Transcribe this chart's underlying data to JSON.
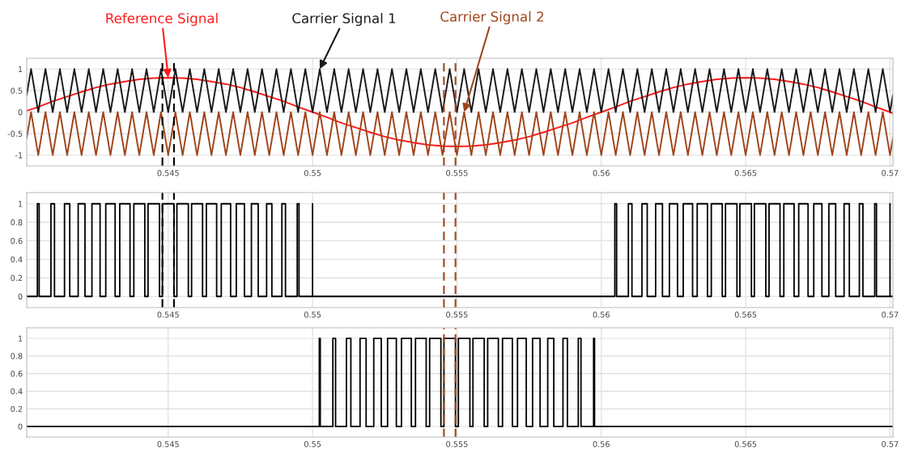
{
  "chart_data": [
    {
      "type": "line",
      "xlim": [
        0.5401,
        0.5701
      ],
      "ylim": [
        -1.25,
        1.25
      ],
      "xticks": [
        0.545,
        0.55,
        0.555,
        0.56,
        0.565,
        0.57
      ],
      "yticks": [
        -1,
        -0.5,
        0,
        0.5,
        1
      ],
      "grid": true,
      "annotations": [
        {
          "text": "Reference Signal",
          "x": 0.545,
          "y": 0.8
        },
        {
          "text": "Carrier Signal 1",
          "x": 0.55025,
          "y": 1
        },
        {
          "text": "Carrier Signal 2",
          "x": 0.55525,
          "y": 0
        }
      ],
      "ref_lines": [
        {
          "axis": "x",
          "value": 0.5448,
          "color": "#000000",
          "line_style": "dashed"
        },
        {
          "axis": "x",
          "value": 0.5452,
          "color": "#000000",
          "line_style": "dashed"
        },
        {
          "axis": "x",
          "value": 0.55455,
          "color": "#a0441a",
          "line_style": "dashed"
        },
        {
          "axis": "x",
          "value": 0.55495,
          "color": "#a0441a",
          "line_style": "dashed"
        }
      ],
      "series": [
        {
          "color": "#ff1a1a",
          "x": [
            0.5401,
            0.5405,
            0.541,
            0.5415,
            0.542,
            0.5425,
            0.543,
            0.5435,
            0.544,
            0.5445,
            0.545,
            0.5455,
            0.546,
            0.5465,
            0.547,
            0.5475,
            0.548,
            0.5485,
            0.549,
            0.5495,
            0.55,
            0.5505,
            0.551,
            0.5515,
            0.552,
            0.5525,
            0.553,
            0.5535,
            0.554,
            0.5545,
            0.555,
            0.5555,
            0.556,
            0.5565,
            0.557,
            0.5575,
            0.558,
            0.5585,
            0.559,
            0.5595,
            0.56,
            0.5605,
            0.561,
            0.5615,
            0.562,
            0.5625,
            0.563,
            0.5635,
            0.564,
            0.5645,
            0.565,
            0.5655,
            0.566,
            0.5665,
            0.567,
            0.5675,
            0.568,
            0.5685,
            0.569,
            0.5695,
            0.57,
            0.5701
          ],
          "values": [
            0.03,
            0.12,
            0.25,
            0.36,
            0.47,
            0.57,
            0.65,
            0.71,
            0.76,
            0.79,
            0.8,
            0.79,
            0.76,
            0.71,
            0.65,
            0.57,
            0.47,
            0.36,
            0.25,
            0.12,
            0,
            -0.12,
            -0.25,
            -0.36,
            -0.47,
            -0.57,
            -0.65,
            -0.71,
            -0.76,
            -0.79,
            -0.8,
            -0.79,
            -0.76,
            -0.71,
            -0.65,
            -0.57,
            -0.47,
            -0.36,
            -0.25,
            -0.12,
            0,
            0.12,
            0.25,
            0.36,
            0.47,
            0.57,
            0.65,
            0.71,
            0.76,
            0.79,
            0.8,
            0.79,
            0.76,
            0.71,
            0.65,
            0.57,
            0.47,
            0.36,
            0.25,
            0.12,
            0,
            -0.03
          ]
        },
        {
          "color": "#1a1a1a",
          "x": [
            0.5401,
            0.54025,
            0.5405,
            0.54075,
            0.541,
            0.54125,
            0.5415,
            0.54175,
            0.542,
            0.54225,
            0.5425,
            0.54275,
            0.543,
            0.54325,
            0.5435,
            0.54375,
            0.544,
            0.54425,
            0.5445,
            0.54475,
            0.545,
            0.54525,
            0.5455,
            0.54575,
            0.546,
            0.54625,
            0.5465,
            0.54675,
            0.547,
            0.54725,
            0.5475,
            0.54775,
            0.548,
            0.54825,
            0.5485,
            0.54875,
            0.549,
            0.54925,
            0.5495,
            0.54975,
            0.55,
            0.55025,
            0.5505,
            0.55075,
            0.551,
            0.55125,
            0.5515,
            0.55175,
            0.552,
            0.55225,
            0.5525,
            0.55275,
            0.553,
            0.55325,
            0.5535,
            0.55375,
            0.554,
            0.55425,
            0.5545,
            0.55475,
            0.555,
            0.55525,
            0.5555,
            0.55575,
            0.556,
            0.55625,
            0.5565,
            0.55675,
            0.557,
            0.55725,
            0.5575,
            0.55775,
            0.558,
            0.55825,
            0.5585,
            0.55875,
            0.559,
            0.55925,
            0.5595,
            0.55975,
            0.56,
            0.56025,
            0.5605,
            0.56075,
            0.561,
            0.56125,
            0.5615,
            0.56175,
            0.562,
            0.56225,
            0.5625,
            0.56275,
            0.563,
            0.56325,
            0.5635,
            0.56375,
            0.564,
            0.56425,
            0.5645,
            0.56475,
            0.565,
            0.56525,
            0.5655,
            0.56575,
            0.566,
            0.56625,
            0.5665,
            0.56675,
            0.567,
            0.56725,
            0.5675,
            0.56775,
            0.568,
            0.56825,
            0.5685,
            0.56875,
            0.569,
            0.56925,
            0.5695,
            0.56975,
            0.57,
            0.5701
          ],
          "values": [
            0.4,
            1,
            0,
            1,
            0,
            1,
            0,
            1,
            0,
            1,
            0,
            1,
            0,
            1,
            0,
            1,
            0,
            1,
            0,
            1,
            0,
            1,
            0,
            1,
            0,
            1,
            0,
            1,
            0,
            1,
            0,
            1,
            0,
            1,
            0,
            1,
            0,
            1,
            0,
            1,
            0,
            1,
            0,
            1,
            0,
            1,
            0,
            1,
            0,
            1,
            0,
            1,
            0,
            1,
            0,
            1,
            0,
            1,
            0,
            1,
            0,
            1,
            0,
            1,
            0,
            1,
            0,
            1,
            0,
            1,
            0,
            1,
            0,
            1,
            0,
            1,
            0,
            1,
            0,
            1,
            0,
            1,
            0,
            1,
            0,
            1,
            0,
            1,
            0,
            1,
            0,
            1,
            0,
            1,
            0,
            1,
            0,
            1,
            0,
            1,
            0,
            1,
            0,
            1,
            0,
            1,
            0,
            1,
            0,
            1,
            0,
            1,
            0,
            1,
            0,
            1,
            0,
            1,
            0,
            1,
            0,
            0.4
          ]
        },
        {
          "color": "#a0441a",
          "x": [
            0.5401,
            0.54025,
            0.5405,
            0.54075,
            0.541,
            0.54125,
            0.5415,
            0.54175,
            0.542,
            0.54225,
            0.5425,
            0.54275,
            0.543,
            0.54325,
            0.5435,
            0.54375,
            0.544,
            0.54425,
            0.5445,
            0.54475,
            0.545,
            0.54525,
            0.5455,
            0.54575,
            0.546,
            0.54625,
            0.5465,
            0.54675,
            0.547,
            0.54725,
            0.5475,
            0.54775,
            0.548,
            0.54825,
            0.5485,
            0.54875,
            0.549,
            0.54925,
            0.5495,
            0.54975,
            0.55,
            0.55025,
            0.5505,
            0.55075,
            0.551,
            0.55125,
            0.5515,
            0.55175,
            0.552,
            0.55225,
            0.5525,
            0.55275,
            0.553,
            0.55325,
            0.5535,
            0.55375,
            0.554,
            0.55425,
            0.5545,
            0.55475,
            0.555,
            0.55525,
            0.5555,
            0.55575,
            0.556,
            0.55625,
            0.5565,
            0.55675,
            0.557,
            0.55725,
            0.5575,
            0.55775,
            0.558,
            0.55825,
            0.5585,
            0.55875,
            0.559,
            0.55925,
            0.5595,
            0.55975,
            0.56,
            0.56025,
            0.5605,
            0.56075,
            0.561,
            0.56125,
            0.5615,
            0.56175,
            0.562,
            0.56225,
            0.5625,
            0.56275,
            0.563,
            0.56325,
            0.5635,
            0.56375,
            0.564,
            0.56425,
            0.5645,
            0.56475,
            0.565,
            0.56525,
            0.5655,
            0.56575,
            0.566,
            0.56625,
            0.5665,
            0.56675,
            0.567,
            0.56725,
            0.5675,
            0.56775,
            0.568,
            0.56825,
            0.5685,
            0.56875,
            0.569,
            0.56925,
            0.5695,
            0.56975,
            0.57,
            0.5701
          ],
          "values": [
            -0.6,
            0,
            -1,
            0,
            -1,
            0,
            -1,
            0,
            -1,
            0,
            -1,
            0,
            -1,
            0,
            -1,
            0,
            -1,
            0,
            -1,
            0,
            -1,
            0,
            -1,
            0,
            -1,
            0,
            -1,
            0,
            -1,
            0,
            -1,
            0,
            -1,
            0,
            -1,
            0,
            -1,
            0,
            -1,
            0,
            -1,
            0,
            -1,
            0,
            -1,
            0,
            -1,
            0,
            -1,
            0,
            -1,
            0,
            -1,
            0,
            -1,
            0,
            -1,
            0,
            -1,
            0,
            -1,
            0,
            -1,
            0,
            -1,
            0,
            -1,
            0,
            -1,
            0,
            -1,
            0,
            -1,
            0,
            -1,
            0,
            -1,
            0,
            -1,
            0,
            -1,
            0,
            -1,
            0,
            -1,
            0,
            -1,
            0,
            -1,
            0,
            -1,
            0,
            -1,
            0,
            -1,
            0,
            -1,
            0,
            -1,
            0,
            -1,
            0,
            -1,
            0,
            -1,
            0,
            -1,
            0,
            -1,
            0,
            -1,
            0,
            -1,
            0,
            -1,
            0,
            -1,
            0,
            -1,
            0,
            -1,
            -0.6
          ]
        }
      ]
    },
    {
      "type": "step",
      "xlim": [
        0.5401,
        0.5701
      ],
      "ylim": [
        -0.12,
        1.12
      ],
      "xticks": [
        0.545,
        0.55,
        0.555,
        0.56,
        0.565,
        0.57
      ],
      "yticks": [
        0,
        0.2,
        0.4,
        0.6,
        0.8,
        1
      ],
      "grid": true,
      "ref_lines": [
        {
          "axis": "x",
          "value": 0.5448,
          "color": "#000000",
          "line_style": "dashed"
        },
        {
          "axis": "x",
          "value": 0.5452,
          "color": "#000000",
          "line_style": "dashed"
        },
        {
          "axis": "x",
          "value": 0.55455,
          "color": "#a0441a",
          "line_style": "dashed"
        },
        {
          "axis": "x",
          "value": 0.55495,
          "color": "#a0441a",
          "line_style": "dashed"
        }
      ],
      "series": [
        {
          "color": "#000000",
          "x": [
            0.5401,
            0.540469,
            0.540531,
            0.540938,
            0.541062,
            0.541409,
            0.541591,
            0.541882,
            0.542118,
            0.542359,
            0.542641,
            0.542838,
            0.543162,
            0.543322,
            0.543678,
            0.54381,
            0.54419,
            0.544302,
            0.544698,
            0.5448,
            0.5452,
            0.545302,
            0.545698,
            0.54581,
            0.54619,
            0.546322,
            0.546678,
            0.546838,
            0.547162,
            0.547359,
            0.547641,
            0.547882,
            0.548118,
            0.548409,
            0.548591,
            0.548938,
            0.549062,
            0.549469,
            0.549531,
            0.55,
            0.55,
            0.560469,
            0.560531,
            0.560938,
            0.561062,
            0.561409,
            0.561591,
            0.561882,
            0.562118,
            0.562359,
            0.562641,
            0.562838,
            0.563162,
            0.563322,
            0.563678,
            0.56381,
            0.56419,
            0.564302,
            0.564698,
            0.5648,
            0.5652,
            0.565302,
            0.565698,
            0.56581,
            0.56619,
            0.566322,
            0.566678,
            0.566838,
            0.567162,
            0.567359,
            0.567641,
            0.567882,
            0.568118,
            0.568409,
            0.568591,
            0.568938,
            0.569062,
            0.569469,
            0.569531,
            0.57,
            0.57,
            0.5701
          ],
          "values": [
            0,
            1,
            0,
            1,
            0,
            1,
            0,
            1,
            0,
            1,
            0,
            1,
            0,
            1,
            0,
            1,
            0,
            1,
            0,
            1,
            0,
            1,
            0,
            1,
            0,
            1,
            0,
            1,
            0,
            1,
            0,
            1,
            0,
            1,
            0,
            1,
            0,
            1,
            0,
            1,
            0,
            1,
            0,
            1,
            0,
            1,
            0,
            1,
            0,
            1,
            0,
            1,
            0,
            1,
            0,
            1,
            0,
            1,
            0,
            1,
            0,
            1,
            0,
            1,
            0,
            1,
            0,
            1,
            0,
            1,
            0,
            1,
            0,
            1,
            0,
            1,
            0,
            1,
            0,
            1,
            0,
            0
          ]
        }
      ]
    },
    {
      "type": "step",
      "xlim": [
        0.5401,
        0.5701
      ],
      "ylim": [
        -0.12,
        1.12
      ],
      "xticks": [
        0.545,
        0.55,
        0.555,
        0.56,
        0.565,
        0.57
      ],
      "yticks": [
        0,
        0.2,
        0.4,
        0.6,
        0.8,
        1
      ],
      "grid": true,
      "ref_lines": [
        {
          "axis": "x",
          "value": 0.55455,
          "color": "#a0441a",
          "line_style": "dashed"
        },
        {
          "axis": "x",
          "value": 0.55495,
          "color": "#a0441a",
          "line_style": "dashed"
        }
      ],
      "series": [
        {
          "color": "#000000",
          "x": [
            0.5401,
            0.550234,
            0.550266,
            0.550703,
            0.550797,
            0.551173,
            0.551327,
            0.551645,
            0.551855,
            0.55212,
            0.55238,
            0.552598,
            0.552902,
            0.553079,
            0.553421,
            0.553565,
            0.553935,
            0.554055,
            0.554445,
            0.55455,
            0.55495,
            0.55505,
            0.55545,
            0.555555,
            0.555945,
            0.556065,
            0.556435,
            0.556579,
            0.556921,
            0.557098,
            0.557402,
            0.55762,
            0.55788,
            0.558145,
            0.558355,
            0.558673,
            0.558827,
            0.559203,
            0.559297,
            0.559734,
            0.559766,
            0.5701
          ],
          "values": [
            0,
            1,
            0,
            1,
            0,
            1,
            0,
            1,
            0,
            1,
            0,
            1,
            0,
            1,
            0,
            1,
            0,
            1,
            0,
            1,
            0,
            1,
            0,
            1,
            0,
            1,
            0,
            1,
            0,
            1,
            0,
            1,
            0,
            1,
            0,
            1,
            0,
            1,
            0,
            1,
            0,
            0
          ]
        }
      ]
    }
  ]
}
